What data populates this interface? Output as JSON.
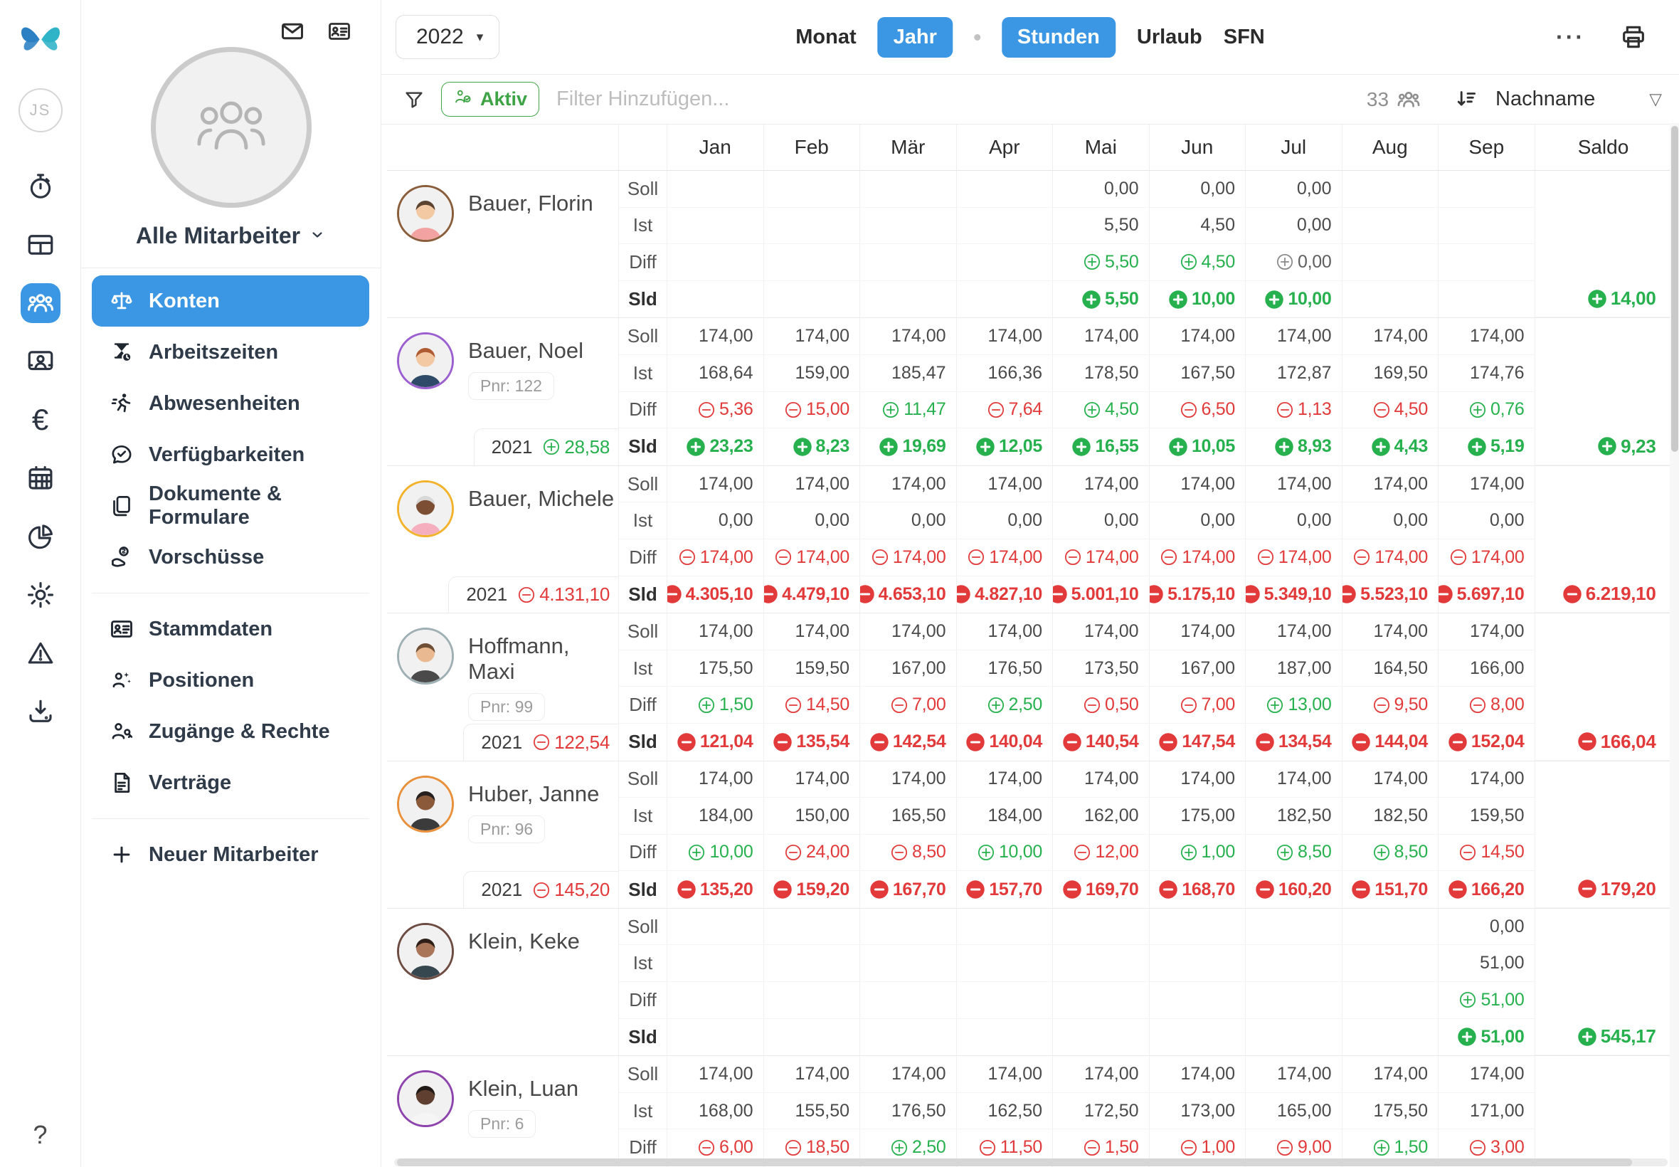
{
  "colors": {
    "accent": "#3b97e3",
    "positive": "#27b14e",
    "negative": "#e23a3a",
    "active_filter_green": "#3da344"
  },
  "rail": {
    "initials": "JS",
    "help_label": "?",
    "icons": [
      {
        "name": "time-tracking",
        "icon": "stopwatch-icon",
        "selected": false
      },
      {
        "name": "shift-planner",
        "icon": "table-icon",
        "selected": false
      },
      {
        "name": "employees",
        "icon": "people-icon",
        "selected": true
      },
      {
        "name": "terminal",
        "icon": "workstation-icon",
        "selected": false
      },
      {
        "name": "payroll",
        "icon": "euro-icon",
        "selected": false
      },
      {
        "name": "calendar",
        "icon": "calendar-icon",
        "selected": false
      },
      {
        "name": "reports",
        "icon": "pie-chart-icon",
        "selected": false
      },
      {
        "name": "settings",
        "icon": "gear-icon",
        "selected": false
      },
      {
        "name": "alerts",
        "icon": "warning-icon",
        "selected": false
      },
      {
        "name": "exports",
        "icon": "download-icon",
        "selected": false
      }
    ]
  },
  "sidebar": {
    "group_label": "Alle Mitarbeiter",
    "items": [
      {
        "label": "Konten",
        "icon": "scale-icon",
        "selected": true
      },
      {
        "label": "Arbeitszeiten",
        "icon": "hourglass-icon"
      },
      {
        "label": "Abwesenheiten",
        "icon": "runner-icon"
      },
      {
        "label": "Verfügbarkeiten",
        "icon": "chat-check-icon"
      },
      {
        "label": "Dokumente & Formulare",
        "icon": "documents-icon"
      },
      {
        "label": "Vorschüsse",
        "icon": "advance-icon"
      },
      {
        "divider": true
      },
      {
        "label": "Stammdaten",
        "icon": "id-card-icon"
      },
      {
        "label": "Positionen",
        "icon": "positions-icon"
      },
      {
        "label": "Zugänge & Rechte",
        "icon": "person-key-icon"
      },
      {
        "label": "Verträge",
        "icon": "contract-icon"
      },
      {
        "divider": true
      },
      {
        "label": "Neuer Mitarbeiter",
        "icon": "plus-icon"
      }
    ]
  },
  "topbar": {
    "year": "2022",
    "views": [
      "Monat",
      "Jahr"
    ],
    "selected_view": "Jahr",
    "tabs": [
      "Stunden",
      "Urlaub",
      "SFN"
    ],
    "selected_tab": "Stunden",
    "more_label": "···"
  },
  "filterbar": {
    "active_label": "Aktiv",
    "placeholder": "Filter Hinzufügen...",
    "count": "33",
    "sort_label": "Nachname"
  },
  "table": {
    "months": [
      "Jan",
      "Feb",
      "Mär",
      "Apr",
      "Mai",
      "Jun",
      "Jul",
      "Aug",
      "Sep"
    ],
    "saldo_label": "Saldo",
    "row_labels": [
      "Soll",
      "Ist",
      "Diff",
      "Sld"
    ],
    "employees": [
      {
        "name": "Bauer, Florin",
        "pnr": "",
        "prev": null,
        "avatar": {
          "ring": "#8a5d3b",
          "skin": "#f3c9a4",
          "hair": "#5b4330",
          "shirt": "#f2a2a0"
        },
        "soll": [
          "",
          "",
          "",
          "",
          "0,00",
          "0,00",
          "0,00",
          "",
          ""
        ],
        "ist": [
          "",
          "",
          "",
          "",
          "5,50",
          "4,50",
          "0,00",
          "",
          ""
        ],
        "diff": [
          "",
          "",
          "",
          "",
          "+5,50",
          "+4,50",
          "0,00",
          "",
          ""
        ],
        "sld": [
          "",
          "",
          "",
          "",
          "+5,50",
          "+10,00",
          "+10,00",
          "",
          ""
        ],
        "saldo": "+14,00"
      },
      {
        "name": "Bauer, Noel",
        "pnr": "Pnr: 122",
        "prev": {
          "year": "2021",
          "value": "+28,58"
        },
        "avatar": {
          "ring": "#9c5fd0",
          "skin": "#f3c9a4",
          "hair": "#b05c33",
          "shirt": "#2e4a68"
        },
        "soll": [
          "174,00",
          "174,00",
          "174,00",
          "174,00",
          "174,00",
          "174,00",
          "174,00",
          "174,00",
          "174,00"
        ],
        "ist": [
          "168,64",
          "159,00",
          "185,47",
          "166,36",
          "178,50",
          "167,50",
          "172,87",
          "169,50",
          "174,76"
        ],
        "diff": [
          "-5,36",
          "-15,00",
          "+11,47",
          "-7,64",
          "+4,50",
          "-6,50",
          "-1,13",
          "-4,50",
          "+0,76"
        ],
        "sld": [
          "+23,23",
          "+8,23",
          "+19,69",
          "+12,05",
          "+16,55",
          "+10,05",
          "+8,93",
          "+4,43",
          "+5,19"
        ],
        "saldo": "+9,23"
      },
      {
        "name": "Bauer, Michele",
        "pnr": "",
        "prev": {
          "year": "2021",
          "value": "-4.131,10"
        },
        "avatar": {
          "ring": "#f2b22b",
          "skin": "#7c4f35",
          "hair": "#d8d8d8",
          "shirt": "#f4aebe"
        },
        "soll": [
          "174,00",
          "174,00",
          "174,00",
          "174,00",
          "174,00",
          "174,00",
          "174,00",
          "174,00",
          "174,00"
        ],
        "ist": [
          "0,00",
          "0,00",
          "0,00",
          "0,00",
          "0,00",
          "0,00",
          "0,00",
          "0,00",
          "0,00"
        ],
        "diff": [
          "-174,00",
          "-174,00",
          "-174,00",
          "-174,00",
          "-174,00",
          "-174,00",
          "-174,00",
          "-174,00",
          "-174,00"
        ],
        "sld": [
          "-4.305,10",
          "-4.479,10",
          "-4.653,10",
          "-4.827,10",
          "-5.001,10",
          "-5.175,10",
          "-5.349,10",
          "-5.523,10",
          "-5.697,10"
        ],
        "saldo": "-6.219,10"
      },
      {
        "name": "Hoffmann, Maxi",
        "pnr": "Pnr: 99",
        "prev": {
          "year": "2021",
          "value": "-122,54"
        },
        "avatar": {
          "ring": "#9fb0b5",
          "skin": "#e9ba92",
          "hair": "#6e4f36",
          "shirt": "#4a4a4a"
        },
        "soll": [
          "174,00",
          "174,00",
          "174,00",
          "174,00",
          "174,00",
          "174,00",
          "174,00",
          "174,00",
          "174,00"
        ],
        "ist": [
          "175,50",
          "159,50",
          "167,00",
          "176,50",
          "173,50",
          "167,00",
          "187,00",
          "164,50",
          "166,00"
        ],
        "diff": [
          "+1,50",
          "-14,50",
          "-7,00",
          "+2,50",
          "-0,50",
          "-7,00",
          "+13,00",
          "-9,50",
          "-8,00"
        ],
        "sld": [
          "-121,04",
          "-135,54",
          "-142,54",
          "-140,04",
          "-140,54",
          "-147,54",
          "-134,54",
          "-144,04",
          "-152,04"
        ],
        "saldo": "-166,04"
      },
      {
        "name": "Huber, Janne",
        "pnr": "Pnr: 96",
        "prev": {
          "year": "2021",
          "value": "-145,20"
        },
        "avatar": {
          "ring": "#e8903a",
          "skin": "#8a5a3b",
          "hair": "#26211e",
          "shirt": "#3b3b3b"
        },
        "soll": [
          "174,00",
          "174,00",
          "174,00",
          "174,00",
          "174,00",
          "174,00",
          "174,00",
          "174,00",
          "174,00"
        ],
        "ist": [
          "184,00",
          "150,00",
          "165,50",
          "184,00",
          "162,00",
          "175,00",
          "182,50",
          "182,50",
          "159,50"
        ],
        "diff": [
          "+10,00",
          "-24,00",
          "-8,50",
          "+10,00",
          "-12,00",
          "+1,00",
          "+8,50",
          "+8,50",
          "-14,50"
        ],
        "sld": [
          "-135,20",
          "-159,20",
          "-167,70",
          "-157,70",
          "-169,70",
          "-168,70",
          "-160,20",
          "-151,70",
          "-166,20"
        ],
        "saldo": "-179,20"
      },
      {
        "name": "Klein, Keke",
        "pnr": "",
        "prev": null,
        "avatar": {
          "ring": "#6d4c41",
          "skin": "#a9765a",
          "hair": "#2e2019",
          "shirt": "#37474f"
        },
        "soll": [
          "",
          "",
          "",
          "",
          "",
          "",
          "",
          "",
          "0,00"
        ],
        "ist": [
          "",
          "",
          "",
          "",
          "",
          "",
          "",
          "",
          "51,00"
        ],
        "diff": [
          "",
          "",
          "",
          "",
          "",
          "",
          "",
          "",
          "+51,00"
        ],
        "sld": [
          "",
          "",
          "",
          "",
          "",
          "",
          "",
          "",
          "+51,00"
        ],
        "saldo": "+545,17"
      },
      {
        "name": "Klein, Luan",
        "pnr": "Pnr: 6",
        "prev": null,
        "avatar": {
          "ring": "#8e44ad",
          "skin": "#5f4030",
          "hair": "#221a16",
          "shirt": "#f5f5f5"
        },
        "soll": [
          "174,00",
          "174,00",
          "174,00",
          "174,00",
          "174,00",
          "174,00",
          "174,00",
          "174,00",
          "174,00"
        ],
        "ist": [
          "168,00",
          "155,50",
          "176,50",
          "162,50",
          "172,50",
          "173,00",
          "165,00",
          "175,50",
          "171,00"
        ],
        "diff": [
          "-6,00",
          "-18,50",
          "+2,50",
          "-11,50",
          "-1,50",
          "-1,00",
          "-9,00",
          "+1,50",
          "-3,00"
        ],
        "sld": null,
        "saldo": null
      }
    ]
  }
}
